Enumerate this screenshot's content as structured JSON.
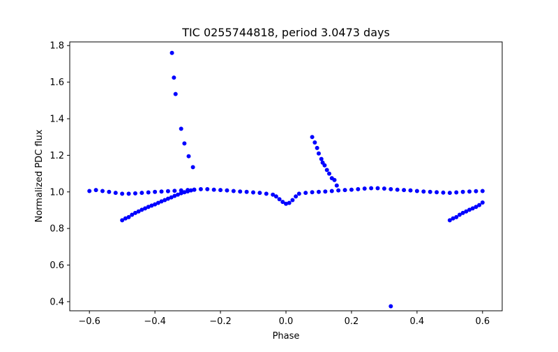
{
  "chart_data": {
    "type": "scatter",
    "title": "TIC 0255744818, period 3.0473 days",
    "xlabel": "Phase",
    "ylabel": "Normalized PDC flux",
    "xlim": [
      -0.66,
      0.66
    ],
    "ylim": [
      0.35,
      1.82
    ],
    "xticks": [
      -0.6,
      -0.4,
      -0.2,
      0.0,
      0.2,
      0.4,
      0.6
    ],
    "xtick_labels": [
      "−0.6",
      "−0.4",
      "−0.2",
      "0.0",
      "0.2",
      "0.4",
      "0.6"
    ],
    "yticks": [
      0.4,
      0.6,
      0.8,
      1.0,
      1.2,
      1.4,
      1.6,
      1.8
    ],
    "ytick_labels": [
      "0.4",
      "0.6",
      "0.8",
      "1.0",
      "1.2",
      "1.4",
      "1.6",
      "1.8"
    ],
    "grid": false,
    "marker_color": "#0000ff",
    "series": [
      {
        "points": [
          [
            -0.6,
            1.005
          ],
          [
            -0.58,
            1.01
          ],
          [
            -0.56,
            1.005
          ],
          [
            -0.54,
            1.0
          ],
          [
            -0.52,
            0.995
          ],
          [
            -0.5,
            0.99
          ],
          [
            -0.48,
            0.99
          ],
          [
            -0.46,
            0.992
          ],
          [
            -0.44,
            0.995
          ],
          [
            -0.42,
            0.997
          ],
          [
            -0.4,
            1.0
          ],
          [
            -0.38,
            1.002
          ],
          [
            -0.36,
            1.004
          ],
          [
            -0.34,
            1.006
          ],
          [
            -0.32,
            1.008
          ],
          [
            -0.3,
            1.01
          ],
          [
            -0.28,
            1.012
          ],
          [
            -0.26,
            1.015
          ],
          [
            -0.24,
            1.015
          ],
          [
            -0.22,
            1.012
          ],
          [
            -0.2,
            1.01
          ],
          [
            -0.18,
            1.008
          ],
          [
            -0.16,
            1.005
          ],
          [
            -0.14,
            1.002
          ],
          [
            -0.12,
            1.0
          ],
          [
            -0.1,
            0.997
          ],
          [
            -0.08,
            0.995
          ],
          [
            -0.06,
            0.99
          ],
          [
            -0.04,
            0.985
          ],
          [
            -0.03,
            0.975
          ],
          [
            -0.02,
            0.96
          ],
          [
            -0.01,
            0.945
          ],
          [
            0.0,
            0.935
          ],
          [
            0.01,
            0.94
          ],
          [
            0.02,
            0.955
          ],
          [
            0.03,
            0.975
          ],
          [
            0.04,
            0.99
          ],
          [
            0.06,
            0.995
          ],
          [
            0.08,
            0.998
          ],
          [
            0.1,
            1.0
          ],
          [
            0.12,
            1.002
          ],
          [
            0.14,
            1.005
          ],
          [
            0.16,
            1.008
          ],
          [
            0.18,
            1.01
          ],
          [
            0.2,
            1.012
          ],
          [
            0.22,
            1.015
          ],
          [
            0.24,
            1.018
          ],
          [
            0.26,
            1.02
          ],
          [
            0.28,
            1.02
          ],
          [
            0.3,
            1.018
          ],
          [
            0.32,
            1.015
          ],
          [
            0.34,
            1.012
          ],
          [
            0.36,
            1.01
          ],
          [
            0.38,
            1.008
          ],
          [
            0.4,
            1.005
          ],
          [
            0.42,
            1.002
          ],
          [
            0.44,
            1.0
          ],
          [
            0.46,
            0.998
          ],
          [
            0.48,
            0.996
          ],
          [
            0.5,
            0.995
          ],
          [
            0.52,
            0.997
          ],
          [
            0.54,
            1.0
          ],
          [
            0.56,
            1.002
          ],
          [
            0.58,
            1.004
          ],
          [
            0.6,
            1.005
          ],
          [
            -0.5,
            0.845
          ],
          [
            -0.49,
            0.855
          ],
          [
            -0.48,
            0.862
          ],
          [
            -0.47,
            0.875
          ],
          [
            -0.46,
            0.885
          ],
          [
            -0.45,
            0.893
          ],
          [
            -0.44,
            0.902
          ],
          [
            -0.43,
            0.91
          ],
          [
            -0.42,
            0.918
          ],
          [
            -0.41,
            0.925
          ],
          [
            -0.4,
            0.932
          ],
          [
            -0.39,
            0.94
          ],
          [
            -0.38,
            0.948
          ],
          [
            -0.37,
            0.955
          ],
          [
            -0.36,
            0.963
          ],
          [
            -0.35,
            0.97
          ],
          [
            -0.34,
            0.978
          ],
          [
            -0.33,
            0.985
          ],
          [
            -0.32,
            0.993
          ],
          [
            -0.31,
            0.998
          ],
          [
            -0.3,
            1.003
          ],
          [
            -0.29,
            1.008
          ],
          [
            -0.28,
            1.012
          ],
          [
            -0.348,
            1.76
          ],
          [
            -0.342,
            1.625
          ],
          [
            -0.337,
            1.535
          ],
          [
            -0.32,
            1.345
          ],
          [
            -0.31,
            1.265
          ],
          [
            -0.297,
            1.195
          ],
          [
            -0.284,
            1.135
          ],
          [
            0.08,
            1.3
          ],
          [
            0.088,
            1.27
          ],
          [
            0.095,
            1.24
          ],
          [
            0.1,
            1.21
          ],
          [
            0.108,
            1.18
          ],
          [
            0.112,
            1.16
          ],
          [
            0.118,
            1.145
          ],
          [
            0.125,
            1.12
          ],
          [
            0.132,
            1.1
          ],
          [
            0.14,
            1.075
          ],
          [
            0.148,
            1.065
          ],
          [
            0.155,
            1.035
          ],
          [
            0.5,
            0.845
          ],
          [
            0.51,
            0.855
          ],
          [
            0.52,
            0.862
          ],
          [
            0.53,
            0.875
          ],
          [
            0.54,
            0.885
          ],
          [
            0.55,
            0.893
          ],
          [
            0.56,
            0.902
          ],
          [
            0.57,
            0.91
          ],
          [
            0.58,
            0.918
          ],
          [
            0.59,
            0.928
          ],
          [
            0.6,
            0.942
          ],
          [
            0.32,
            0.375
          ]
        ]
      }
    ]
  }
}
